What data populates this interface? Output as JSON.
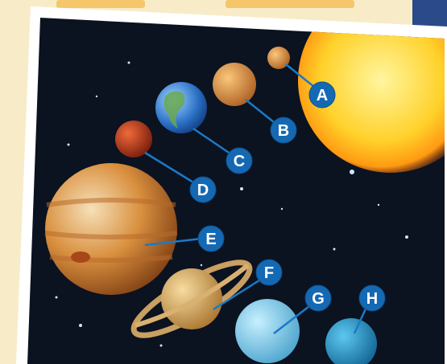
{
  "planet_labels": [
    "A",
    "B",
    "C",
    "D",
    "E",
    "F",
    "G",
    "H"
  ]
}
